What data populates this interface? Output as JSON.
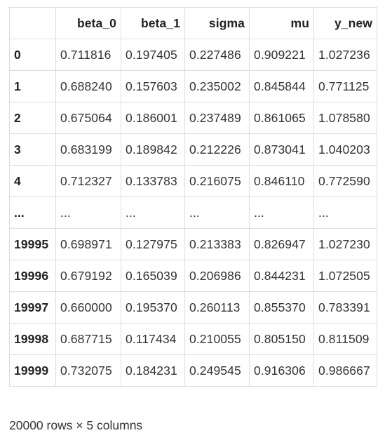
{
  "table": {
    "columns": [
      "",
      "beta_0",
      "beta_1",
      "sigma",
      "mu",
      "y_new"
    ],
    "rows": [
      {
        "index": "0",
        "values": [
          "0.711816",
          "0.197405",
          "0.227486",
          "0.909221",
          "1.027236"
        ]
      },
      {
        "index": "1",
        "values": [
          "0.688240",
          "0.157603",
          "0.235002",
          "0.845844",
          "0.771125"
        ]
      },
      {
        "index": "2",
        "values": [
          "0.675064",
          "0.186001",
          "0.237489",
          "0.861065",
          "1.078580"
        ]
      },
      {
        "index": "3",
        "values": [
          "0.683199",
          "0.189842",
          "0.212226",
          "0.873041",
          "1.040203"
        ]
      },
      {
        "index": "4",
        "values": [
          "0.712327",
          "0.133783",
          "0.216075",
          "0.846110",
          "0.772590"
        ]
      },
      {
        "index": "...",
        "values": [
          "...",
          "...",
          "...",
          "...",
          "..."
        ]
      },
      {
        "index": "19995",
        "values": [
          "0.698971",
          "0.127975",
          "0.213383",
          "0.826947",
          "1.027230"
        ]
      },
      {
        "index": "19996",
        "values": [
          "0.679192",
          "0.165039",
          "0.206986",
          "0.844231",
          "1.072505"
        ]
      },
      {
        "index": "19997",
        "values": [
          "0.660000",
          "0.195370",
          "0.260113",
          "0.855370",
          "0.783391"
        ]
      },
      {
        "index": "19998",
        "values": [
          "0.687715",
          "0.117434",
          "0.210055",
          "0.805150",
          "0.811509"
        ]
      },
      {
        "index": "19999",
        "values": [
          "0.732075",
          "0.184231",
          "0.249545",
          "0.916306",
          "0.986667"
        ]
      }
    ]
  },
  "footer": {
    "shape_text": "20000 rows × 5 columns"
  }
}
